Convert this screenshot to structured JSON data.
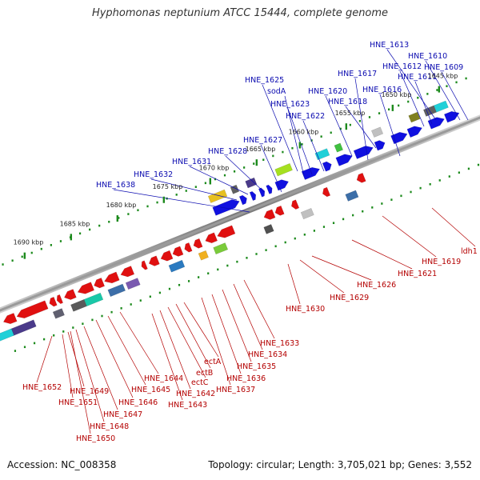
{
  "title": "Hyphomonas neptunium ATCC 15444, complete genome",
  "footer": {
    "accession": "Accession: NC_008358",
    "summary": "Topology: circular; Length: 3,705,021 bp; Genes: 3,552"
  },
  "colors": {
    "forward_strand": "#1010e0",
    "reverse_strand": "#e01010",
    "forward_label": "#0b0bb0",
    "reverse_label": "#b40000",
    "tick": "#1c8a1c",
    "backbone": "#808080"
  },
  "scale_ticks": [
    "1645 kbp",
    "1650 kbp",
    "1655 kbp",
    "1660 kbp",
    "1665 kbp",
    "1670 kbp",
    "1675 kbp",
    "1680 kbp",
    "1685 kbp",
    "1690 kbp"
  ],
  "forward_genes": [
    "HNE_1613",
    "HNE_1610",
    "HNE_1612",
    "HNE_1609",
    "HNE_1617",
    "HNE_1611",
    "HNE_1625",
    "HNE_1616",
    "HNE_1620",
    "sodA",
    "HNE_1618",
    "HNE_1623",
    "HNE_1622",
    "HNE_1627",
    "HNE_1628",
    "HNE_1631",
    "HNE_1632",
    "HNE_1638"
  ],
  "reverse_genes": [
    "ldh1",
    "HNE_1619",
    "HNE_1621",
    "HNE_1626",
    "HNE_1629",
    "HNE_1630",
    "HNE_1633",
    "HNE_1634",
    "ectA",
    "HNE_1635",
    "ectB",
    "HNE_1636",
    "HNE_1644",
    "ectC",
    "HNE_1637",
    "HNE_1652",
    "HNE_1645",
    "HNE_1642",
    "HNE_1649",
    "HNE_1646",
    "HNE_1643",
    "HNE_1651",
    "HNE_1647",
    "HNE_1648",
    "HNE_1650"
  ]
}
